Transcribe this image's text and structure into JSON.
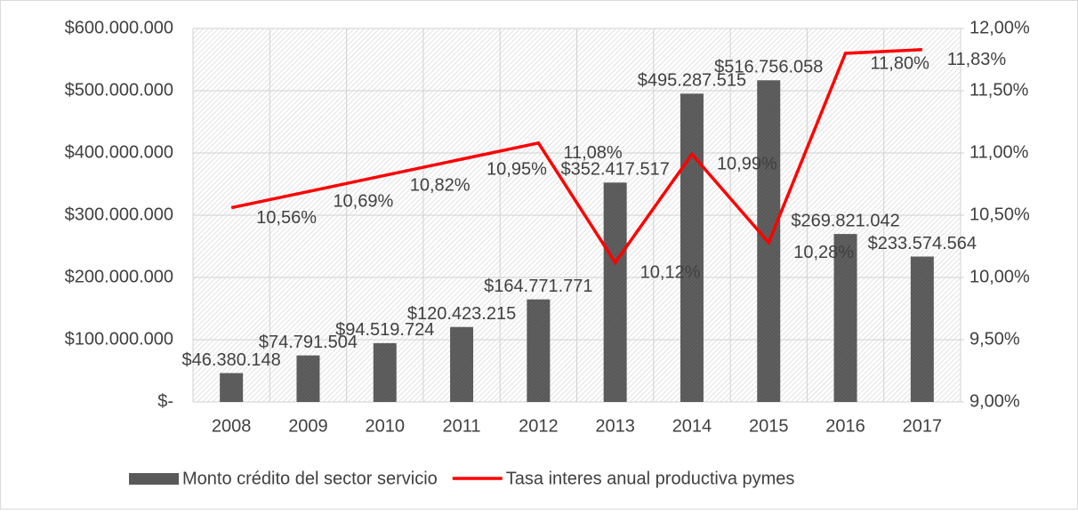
{
  "chart_data": {
    "type": "combo",
    "categories": [
      "2008",
      "2009",
      "2010",
      "2011",
      "2012",
      "2013",
      "2014",
      "2015",
      "2016",
      "2017"
    ],
    "series": [
      {
        "name": "Monto crédito del sector servicio",
        "type": "bar",
        "color": "#595959",
        "values": [
          46380148,
          74791504,
          94519724,
          120423215,
          164771771,
          352417517,
          495287515,
          516756058,
          269821042,
          233574564
        ],
        "value_labels": [
          "$46.380.148",
          "$74.791.504",
          "$94.519.724",
          "$120.423.215",
          "$164.771.771",
          "$352.417.517",
          "$495.287.515",
          "$516.756.058",
          "$269.821.042",
          "$233.574.564"
        ]
      },
      {
        "name": "Tasa interes anual productiva pymes",
        "type": "line",
        "axis": "y2",
        "color": "#ff0000",
        "values": [
          10.56,
          10.69,
          10.82,
          10.95,
          11.08,
          10.12,
          10.99,
          10.28,
          11.8,
          11.83
        ],
        "value_labels": [
          "10,56%",
          "10,69%",
          "10,82%",
          "10,95%",
          "11,08%",
          "10,12%",
          "10,99%",
          "10,28%",
          "11,80%",
          "11,83%"
        ]
      }
    ],
    "ylim": [
      0,
      600000000
    ],
    "yticks": [
      {
        "value": 0,
        "label": "$-"
      },
      {
        "value": 100000000,
        "label": "$100.000.000"
      },
      {
        "value": 200000000,
        "label": "$200.000.000"
      },
      {
        "value": 300000000,
        "label": "$300.000.000"
      },
      {
        "value": 400000000,
        "label": "$400.000.000"
      },
      {
        "value": 500000000,
        "label": "$500.000.000"
      },
      {
        "value": 600000000,
        "label": "$600.000.000"
      }
    ],
    "y2lim": [
      9,
      12
    ],
    "y2ticks": [
      {
        "value": 9,
        "label": "9,00%"
      },
      {
        "value": 9.5,
        "label": "9,50%"
      },
      {
        "value": 10,
        "label": "10,00%"
      },
      {
        "value": 10.5,
        "label": "10,50%"
      },
      {
        "value": 11,
        "label": "11,00%"
      },
      {
        "value": 11.5,
        "label": "11,50%"
      },
      {
        "value": 12,
        "label": "12,00%"
      }
    ],
    "grid": true,
    "legend": "bottom"
  }
}
